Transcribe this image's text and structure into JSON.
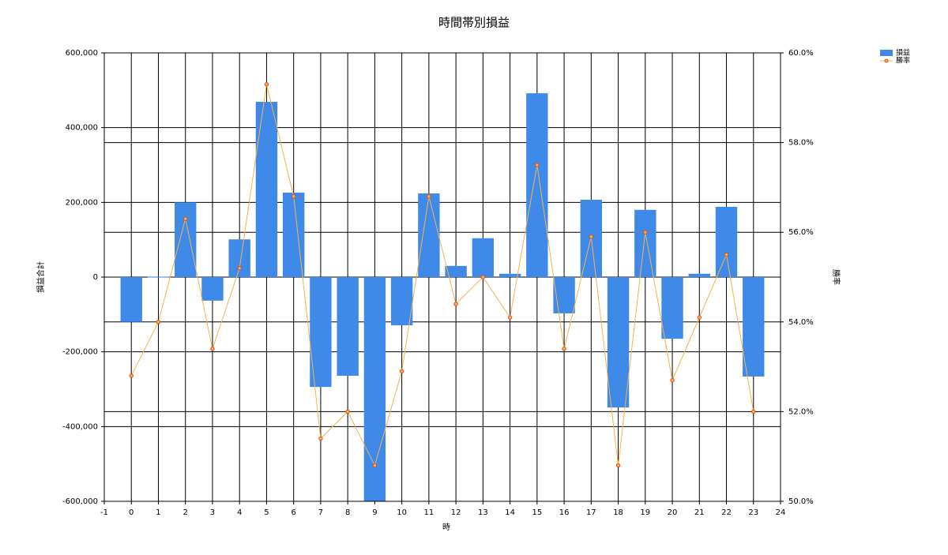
{
  "chart_data": {
    "type": "bar",
    "title": "時間帯別損益",
    "xlabel": "時",
    "ylabel": "損益合計",
    "y2label": "勝率",
    "x": [
      0,
      1,
      2,
      3,
      4,
      5,
      6,
      7,
      8,
      9,
      10,
      11,
      12,
      13,
      14,
      15,
      16,
      17,
      18,
      19,
      20,
      21,
      22,
      23
    ],
    "series": [
      {
        "name": "損益",
        "type": "bar",
        "color": "#3f8ae9",
        "values": [
          -120000,
          1000,
          200000,
          -63000,
          101000,
          469000,
          226000,
          -294000,
          -264000,
          -600000,
          -129000,
          224000,
          30000,
          104000,
          9000,
          492000,
          -97000,
          207000,
          -349000,
          180000,
          -165000,
          9000,
          188000,
          -266000
        ]
      },
      {
        "name": "勝率",
        "type": "line",
        "axis": "y2",
        "color": "#f7b24a",
        "marker_color": "#e5471c",
        "values": [
          52.8,
          54.0,
          56.3,
          53.4,
          55.2,
          59.3,
          56.8,
          51.4,
          52.0,
          50.8,
          52.9,
          56.8,
          54.4,
          55.0,
          54.1,
          57.5,
          53.4,
          55.9,
          50.8,
          56.0,
          52.7,
          54.1,
          55.5,
          52.0
        ]
      }
    ],
    "xlim": [
      -1,
      24
    ],
    "xticks": [
      -1,
      0,
      1,
      2,
      3,
      4,
      5,
      6,
      7,
      8,
      9,
      10,
      11,
      12,
      13,
      14,
      15,
      16,
      17,
      18,
      19,
      20,
      21,
      22,
      23,
      24
    ],
    "ylim": [
      -600000,
      600000
    ],
    "yticks": [
      {
        "value": -600000,
        "label": "-600,000"
      },
      {
        "value": -400000,
        "label": "-400,000"
      },
      {
        "value": -200000,
        "label": "-200,000"
      },
      0,
      {
        "value": 200000,
        "label": "200,000"
      },
      {
        "value": 400000,
        "label": "400,000"
      },
      {
        "value": 600000,
        "label": "600,000"
      }
    ],
    "y2lim": [
      50,
      60
    ],
    "y2ticks": [
      {
        "value": 50,
        "label": "50.0%"
      },
      {
        "value": 52,
        "label": "52.0%"
      },
      {
        "value": 54,
        "label": "54.0%"
      },
      {
        "value": 56,
        "label": "56.0%"
      },
      {
        "value": 58,
        "label": "58.0%"
      },
      {
        "value": 60,
        "label": "60.0%"
      }
    ],
    "grid": true,
    "legend": "top-right"
  }
}
